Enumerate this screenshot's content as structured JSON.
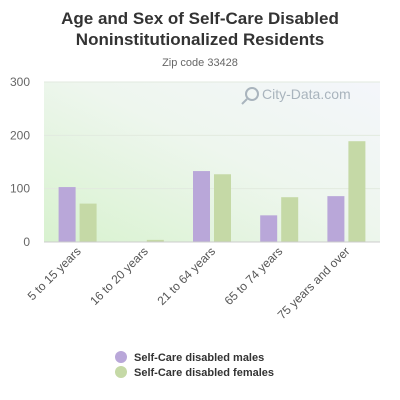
{
  "chart_data": {
    "type": "bar",
    "title": "Age and Sex of Self-Care Disabled Noninstitutionalized Residents",
    "title_lines": [
      "Age and Sex of Self-Care Disabled",
      "Noninstitutionalized Residents"
    ],
    "subtitle": "Zip code 33428",
    "categories": [
      "5 to 15 years",
      "16 to 20 years",
      "21 to 64 years",
      "65 to 74 years",
      "75 years and over"
    ],
    "series": [
      {
        "name": "Self-Care disabled males",
        "color": "#b9a7d9",
        "values": [
          103,
          0,
          133,
          50,
          86
        ]
      },
      {
        "name": "Self-Care disabled females",
        "color": "#c5d9a6",
        "values": [
          72,
          4,
          127,
          84,
          189
        ]
      }
    ],
    "yticks": [
      0,
      100,
      200,
      300
    ],
    "ylim": [
      0,
      300
    ],
    "grid": true,
    "legend_position": "bottom",
    "watermark": "City-Data.com"
  }
}
